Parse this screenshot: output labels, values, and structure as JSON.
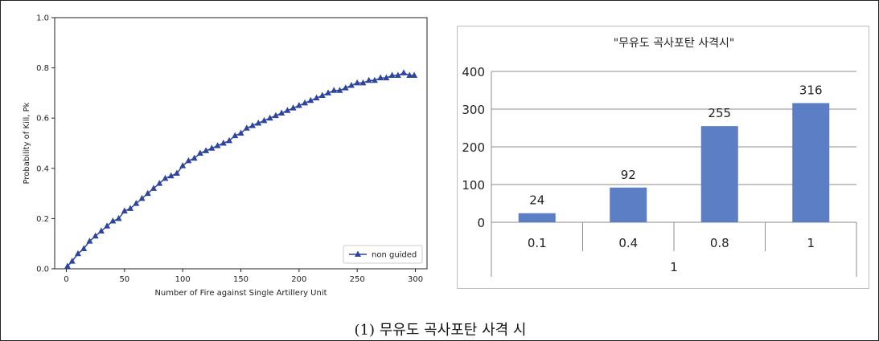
{
  "caption": "(1) 무유도 곡사포탄 사격 시",
  "chart_data": [
    {
      "type": "line",
      "title": "",
      "xlabel": "Number of Fire against Single Artillery Unit",
      "ylabel": "Probability of Kill, Pk",
      "xlim": [
        -10,
        310
      ],
      "ylim": [
        0.0,
        1.0
      ],
      "xticks": [
        0,
        50,
        100,
        150,
        200,
        250,
        300
      ],
      "yticks": [
        0.0,
        0.2,
        0.4,
        0.6,
        0.8,
        1.0
      ],
      "xtick_labels": [
        "0",
        "50",
        "100",
        "150",
        "200",
        "250",
        "300"
      ],
      "ytick_labels": [
        "0.0",
        "0.2",
        "0.4",
        "0.6",
        "0.8",
        "1.0"
      ],
      "grid": false,
      "legend": "bottom-right",
      "series": [
        {
          "name": "non guided",
          "color": "#2e45a0",
          "marker": "triangle",
          "x": [
            1,
            5,
            10,
            15,
            20,
            25,
            30,
            35,
            40,
            45,
            50,
            55,
            60,
            65,
            70,
            75,
            80,
            85,
            90,
            95,
            100,
            105,
            110,
            115,
            120,
            125,
            130,
            135,
            140,
            145,
            150,
            155,
            160,
            165,
            170,
            175,
            180,
            185,
            190,
            195,
            200,
            205,
            210,
            215,
            220,
            225,
            230,
            235,
            240,
            245,
            250,
            255,
            260,
            265,
            270,
            275,
            280,
            285,
            290,
            295,
            299
          ],
          "y": [
            0.01,
            0.03,
            0.06,
            0.08,
            0.11,
            0.13,
            0.15,
            0.17,
            0.19,
            0.2,
            0.23,
            0.24,
            0.26,
            0.28,
            0.3,
            0.32,
            0.34,
            0.36,
            0.37,
            0.38,
            0.41,
            0.43,
            0.44,
            0.46,
            0.47,
            0.48,
            0.49,
            0.5,
            0.51,
            0.53,
            0.54,
            0.56,
            0.57,
            0.58,
            0.59,
            0.6,
            0.61,
            0.62,
            0.63,
            0.64,
            0.65,
            0.66,
            0.67,
            0.68,
            0.69,
            0.7,
            0.71,
            0.71,
            0.72,
            0.73,
            0.74,
            0.74,
            0.75,
            0.75,
            0.76,
            0.76,
            0.77,
            0.77,
            0.78,
            0.77,
            0.77
          ]
        }
      ]
    },
    {
      "type": "bar",
      "title": "\"무유도 곡사포탄 사격시\"",
      "categories": [
        "0.1",
        "0.4",
        "0.8",
        "1"
      ],
      "group_label": "1",
      "values": [
        24,
        92,
        255,
        316
      ],
      "data_labels": [
        "24",
        "92",
        "255",
        "316"
      ],
      "ylim": [
        0,
        400
      ],
      "yticks": [
        0,
        100,
        200,
        300,
        400
      ],
      "ytick_labels": [
        "0",
        "100",
        "200",
        "300",
        "400"
      ],
      "grid": true,
      "bar_color": "#5b7ec4",
      "xlabel": "",
      "ylabel": ""
    }
  ]
}
